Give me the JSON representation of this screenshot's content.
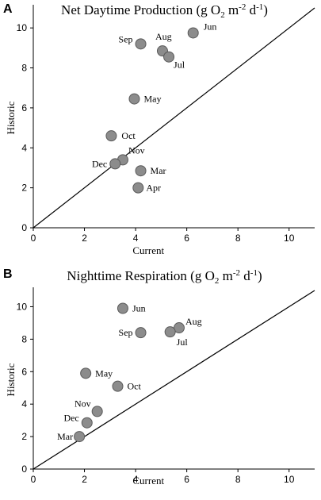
{
  "chart_data": [
    {
      "type": "scatter",
      "panel": "A",
      "title": "Net Daytime Production (g O2 m-2 d-1)",
      "title_parts": {
        "main": "Net Daytime Production (g O",
        "sub": "2",
        "mid": " m",
        "sup1": "-2",
        "mid2": " d",
        "sup2": "-1",
        "end": ")"
      },
      "xlabel": "Current",
      "ylabel": "Historic",
      "xlim": [
        0,
        11
      ],
      "ylim": [
        0,
        11
      ],
      "xticks": [
        "0",
        "2",
        "4",
        "6",
        "8",
        "10"
      ],
      "yticks": [
        "0",
        "2",
        "4",
        "6",
        "8",
        "10"
      ],
      "reference_line": "y = x",
      "points": [
        {
          "label": "Jun",
          "x": 6.25,
          "y": 9.75
        },
        {
          "label": "Sep",
          "x": 4.2,
          "y": 9.2
        },
        {
          "label": "Aug",
          "x": 5.05,
          "y": 8.85
        },
        {
          "label": "Jul",
          "x": 5.3,
          "y": 8.55
        },
        {
          "label": "May",
          "x": 3.95,
          "y": 6.45
        },
        {
          "label": "Oct",
          "x": 3.05,
          "y": 4.6
        },
        {
          "label": "Nov",
          "x": 3.5,
          "y": 3.4
        },
        {
          "label": "Dec",
          "x": 3.2,
          "y": 3.2
        },
        {
          "label": "Mar",
          "x": 4.2,
          "y": 2.85
        },
        {
          "label": "Apr",
          "x": 4.1,
          "y": 2.0
        }
      ]
    },
    {
      "type": "scatter",
      "panel": "B",
      "title": "Nighttime Respiration (g O2 m-2 d-1)",
      "title_parts": {
        "main": "Nighttime Respiration (g O",
        "sub": "2",
        "mid": " m",
        "sup1": "-2",
        "mid2": " d",
        "sup2": "-1",
        "end": ")"
      },
      "xlabel": "Current",
      "ylabel": "Historic",
      "xlim": [
        0,
        11
      ],
      "ylim": [
        0,
        11
      ],
      "xticks": [
        "0",
        "2",
        "4",
        "6",
        "8",
        "10"
      ],
      "yticks": [
        "0",
        "2",
        "4",
        "6",
        "8",
        "10"
      ],
      "reference_line": "y = x",
      "points": [
        {
          "label": "Jun",
          "x": 3.5,
          "y": 9.9
        },
        {
          "label": "Aug",
          "x": 5.7,
          "y": 8.7
        },
        {
          "label": "Jul",
          "x": 5.35,
          "y": 8.45
        },
        {
          "label": "Sep",
          "x": 4.2,
          "y": 8.4
        },
        {
          "label": "May",
          "x": 2.05,
          "y": 5.9
        },
        {
          "label": "Oct",
          "x": 3.3,
          "y": 5.1
        },
        {
          "label": "Nov",
          "x": 2.5,
          "y": 3.55
        },
        {
          "label": "Dec",
          "x": 2.1,
          "y": 2.85
        },
        {
          "label": "Mar",
          "x": 1.8,
          "y": 2.0
        }
      ]
    }
  ]
}
